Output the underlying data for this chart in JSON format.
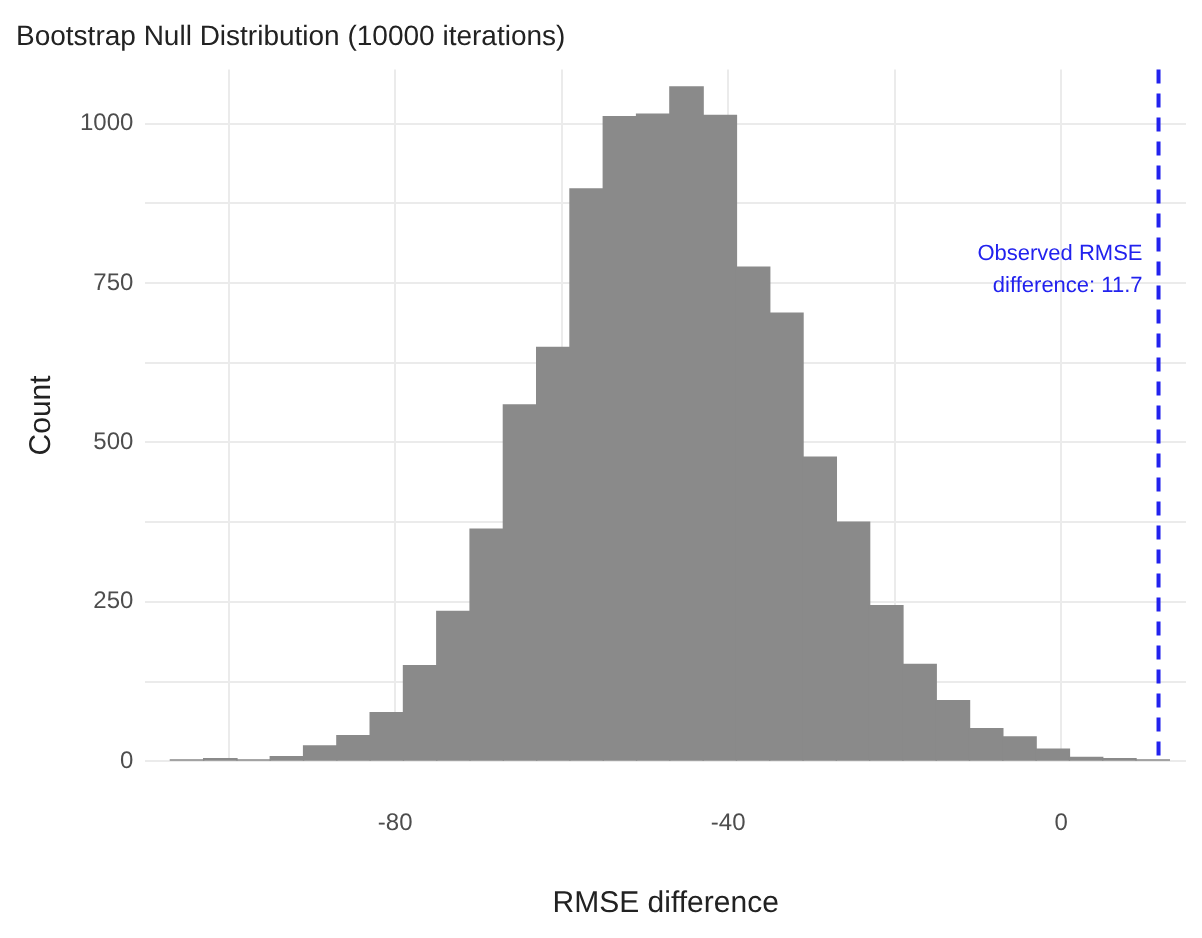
{
  "chart_data": {
    "type": "histogram",
    "title": "Bootstrap Null Distribution (10000 iterations)",
    "xlabel": "RMSE difference",
    "ylabel": "Count",
    "bins": [
      -107,
      -103,
      -99,
      -95,
      -91,
      -87,
      -83,
      -79,
      -75,
      -71,
      -67,
      -63,
      -59,
      -55,
      -51,
      -47,
      -43,
      -39,
      -35,
      -31,
      -27,
      -23,
      -19,
      -15,
      -11,
      -7,
      -3,
      1,
      5,
      9,
      13
    ],
    "values": [
      2,
      4,
      2,
      7,
      24,
      40,
      76,
      150,
      235,
      364,
      559,
      649,
      898,
      1011,
      1015,
      1058,
      1013,
      775,
      703,
      477,
      375,
      244,
      152,
      95,
      51,
      38,
      19,
      6,
      4,
      2
    ],
    "color": "#8a8a8a",
    "xlim": [
      -110,
      15
    ],
    "xticks": [
      {
        "value": -100,
        "label": null
      },
      -80,
      {
        "value": -60,
        "label": null
      },
      -40,
      {
        "value": -20,
        "label": null
      },
      0
    ],
    "ylim": [
      0,
      1085
    ],
    "yticks": [
      0,
      {
        "value": 125,
        "label": null
      },
      250,
      {
        "value": 375,
        "label": null
      },
      500,
      {
        "value": 625,
        "label": null
      },
      750,
      {
        "value": 875,
        "label": null
      },
      1000
    ],
    "grid": true,
    "ref_lines": [
      {
        "axis": "x",
        "value": 11.7,
        "label": "Observed RMSE difference: 11.7",
        "color": "#2222ee",
        "line_style": "dashed"
      }
    ]
  }
}
